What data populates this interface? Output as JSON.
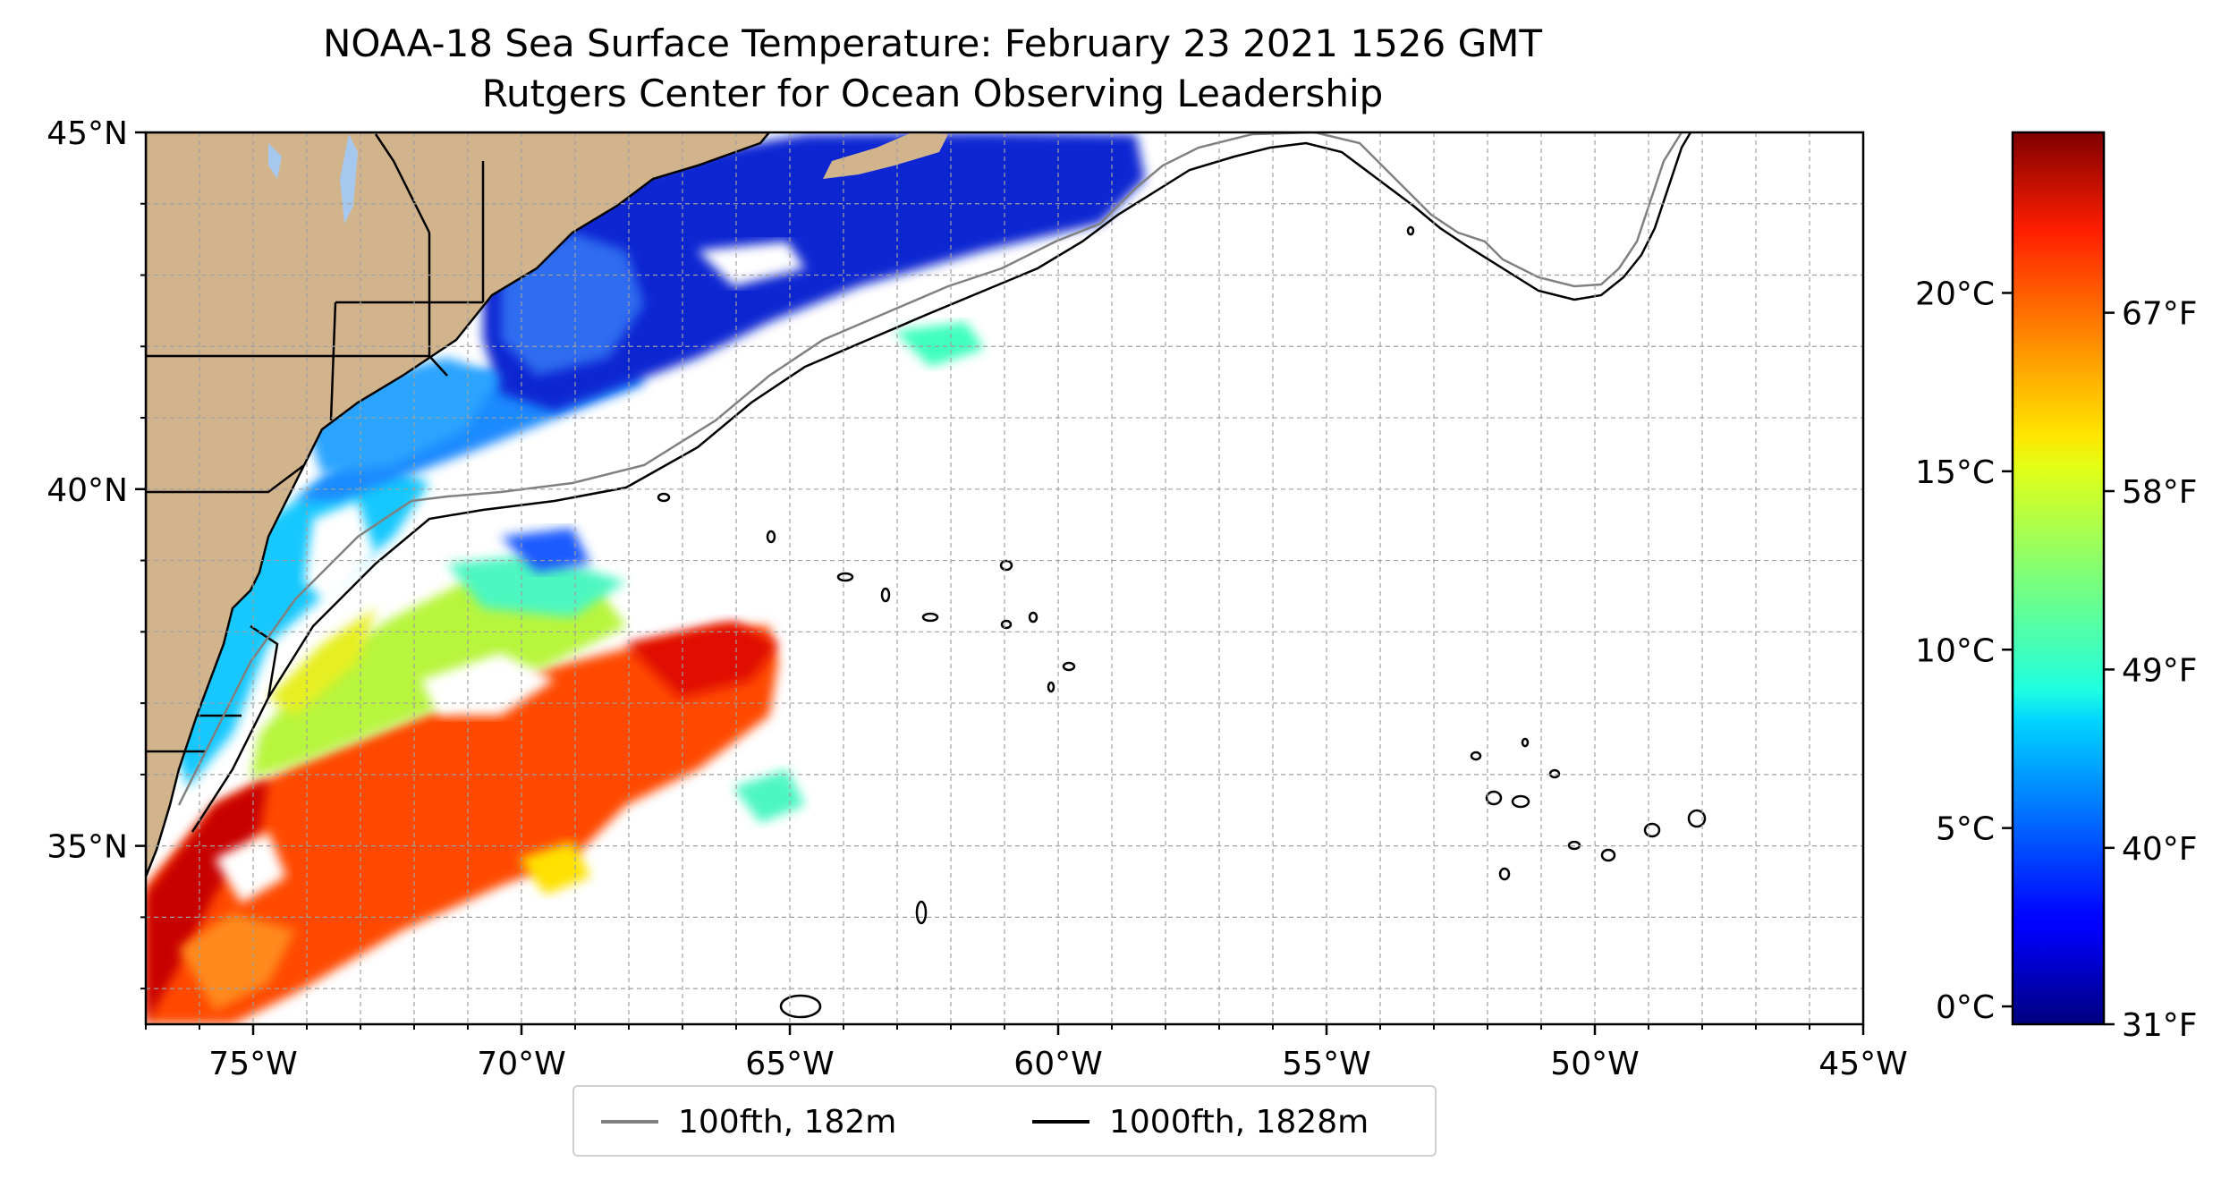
{
  "title": {
    "line1": "NOAA-18 Sea Surface Temperature: February 23 2021 1526 GMT",
    "line2": "Rutgers Center for Ocean Observing Leadership"
  },
  "map": {
    "lon_range": [
      -77,
      -45
    ],
    "lat_range": [
      32.5,
      45
    ],
    "x_tick_labels": [
      {
        "lon": -75,
        "label": "75°W"
      },
      {
        "lon": -70,
        "label": "70°W"
      },
      {
        "lon": -65,
        "label": "65°W"
      },
      {
        "lon": -60,
        "label": "60°W"
      },
      {
        "lon": -55,
        "label": "55°W"
      },
      {
        "lon": -50,
        "label": "50°W"
      },
      {
        "lon": -45,
        "label": "45°W"
      }
    ],
    "y_tick_labels": [
      {
        "lat": 45,
        "label": "45°N"
      },
      {
        "lat": 40,
        "label": "40°N"
      },
      {
        "lat": 35,
        "label": "35°N"
      }
    ],
    "gridlines": true,
    "land_color": "#d2b48c",
    "lake_color": "#a6c8ef"
  },
  "colorbar": {
    "colormap": "jet",
    "range_c": [
      -0.5,
      24.5
    ],
    "celsius_ticks": [
      {
        "value": 0,
        "label": "0°C"
      },
      {
        "value": 5,
        "label": "5°C"
      },
      {
        "value": 10,
        "label": "10°C"
      },
      {
        "value": 15,
        "label": "15°C"
      },
      {
        "value": 20,
        "label": "20°C"
      }
    ],
    "fahrenheit_ticks": [
      {
        "value_c": -0.5556,
        "label": "31°F"
      },
      {
        "value_c": 4.4444,
        "label": "40°F"
      },
      {
        "value_c": 9.4444,
        "label": "49°F"
      },
      {
        "value_c": 14.4444,
        "label": "58°F"
      },
      {
        "value_c": 19.4444,
        "label": "67°F"
      }
    ]
  },
  "legend": {
    "placement": "bottom-center, below map",
    "items": [
      {
        "label": "100fth, 182m",
        "color": "#808080"
      },
      {
        "label": "1000fth, 1828m",
        "color": "#000000"
      }
    ]
  }
}
